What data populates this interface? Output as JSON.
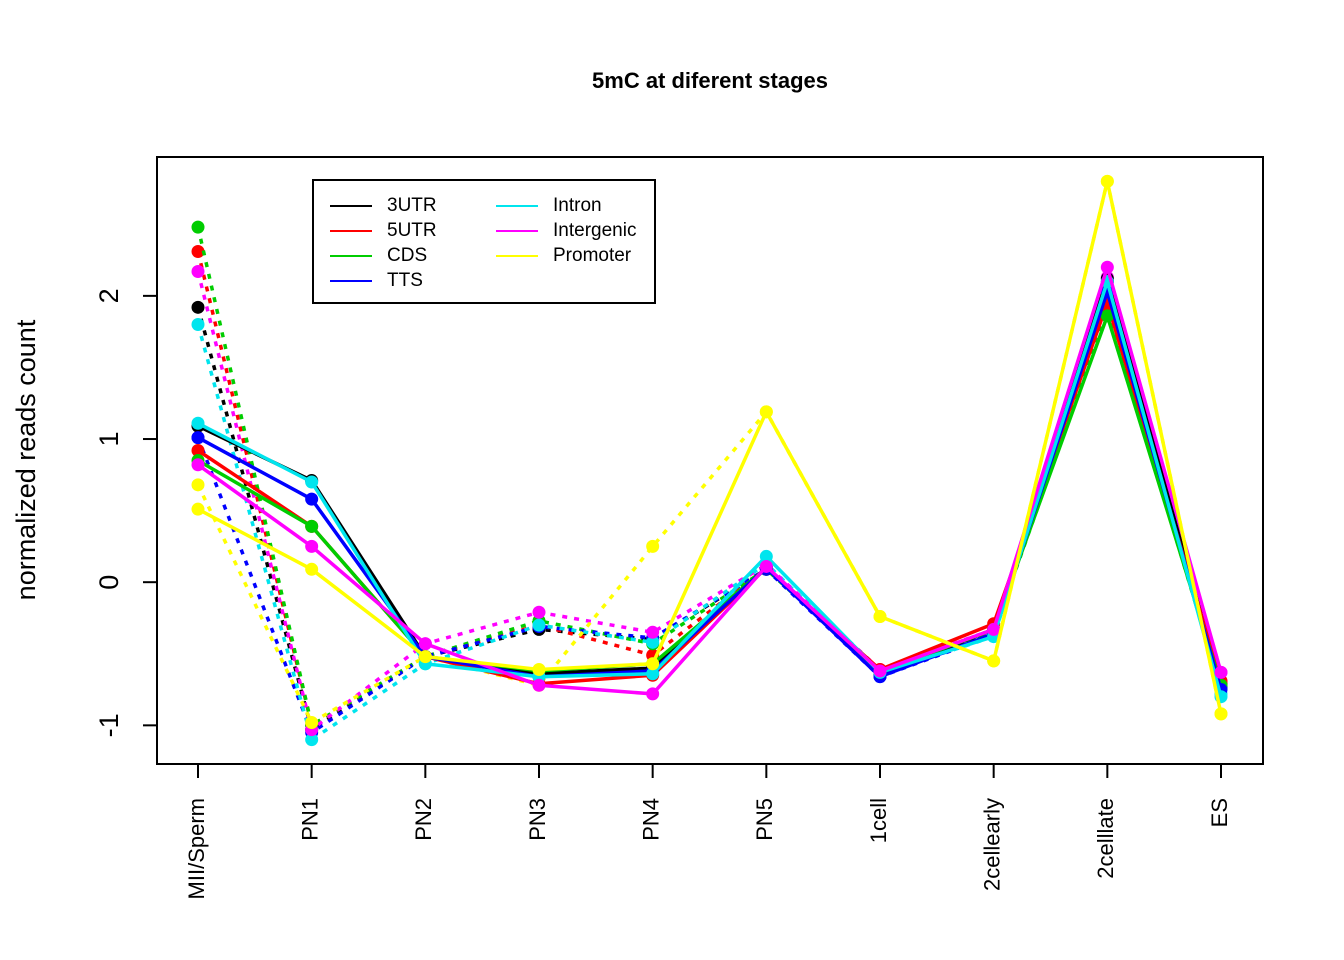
{
  "chart_data": {
    "type": "line",
    "title": "5mC at diferent stages",
    "xlabel": "",
    "ylabel": "normalized reads count",
    "categories": [
      "MII/Sperm",
      "PN1",
      "PN2",
      "PN3",
      "PN4",
      "PN5",
      "1cell",
      "2cellearly",
      "2celllate",
      "ES"
    ],
    "y_ticks": [
      "-1",
      "0",
      "1",
      "2"
    ],
    "ylim": [
      -1.27,
      2.97
    ],
    "legend_placement": "top-left",
    "series": [
      {
        "name": "3UTR",
        "color": "#000000",
        "style": "solid",
        "values": [
          1.09,
          0.71,
          -0.52,
          -0.64,
          -0.6,
          0.1,
          -0.64,
          -0.33,
          2.12,
          -0.72
        ]
      },
      {
        "name": "5UTR",
        "color": "#ff0000",
        "style": "solid",
        "values": [
          0.92,
          0.39,
          -0.52,
          -0.71,
          -0.65,
          0.1,
          -0.61,
          -0.29,
          1.95,
          -0.69
        ]
      },
      {
        "name": "CDS",
        "color": "#00cd00",
        "style": "solid",
        "values": [
          0.85,
          0.39,
          -0.52,
          -0.62,
          -0.57,
          0.1,
          -0.63,
          -0.33,
          1.86,
          -0.72
        ]
      },
      {
        "name": "TTS",
        "color": "#0000ff",
        "style": "solid",
        "values": [
          1.01,
          0.58,
          -0.52,
          -0.66,
          -0.62,
          0.1,
          -0.66,
          -0.36,
          2.03,
          -0.75
        ]
      },
      {
        "name": "Intron",
        "color": "#00e5ee",
        "style": "solid",
        "values": [
          1.11,
          0.7,
          -0.57,
          -0.66,
          -0.64,
          0.18,
          -0.63,
          -0.38,
          2.1,
          -0.8
        ]
      },
      {
        "name": "Intergenic",
        "color": "#ff00ff",
        "style": "solid",
        "values": [
          0.82,
          0.25,
          -0.43,
          -0.72,
          -0.78,
          0.11,
          -0.62,
          -0.33,
          2.2,
          -0.63
        ]
      },
      {
        "name": "Promoter",
        "color": "#ffff00",
        "style": "solid",
        "values": [
          0.51,
          0.09,
          -0.52,
          -0.61,
          -0.57,
          1.19,
          -0.24,
          -0.55,
          2.8,
          -0.92
        ]
      },
      {
        "name": "",
        "color": "#000000",
        "style": "dashed",
        "values": [
          1.92,
          -1.03,
          -0.52,
          -0.33,
          -0.4,
          0.09,
          -0.64,
          -0.36,
          2.1,
          -0.71
        ]
      },
      {
        "name": "",
        "color": "#ff0000",
        "style": "dashed",
        "values": [
          2.31,
          -1.0,
          -0.52,
          -0.3,
          -0.51,
          0.1,
          -0.62,
          -0.33,
          1.98,
          -0.7
        ]
      },
      {
        "name": "",
        "color": "#00cd00",
        "style": "dashed",
        "values": [
          2.48,
          -1.0,
          -0.52,
          -0.27,
          -0.43,
          0.09,
          -0.63,
          -0.35,
          1.9,
          -0.74
        ]
      },
      {
        "name": "",
        "color": "#0000ff",
        "style": "dashed",
        "values": [
          1.01,
          -1.05,
          -0.52,
          -0.31,
          -0.39,
          0.09,
          -0.66,
          -0.37,
          2.02,
          -0.74
        ]
      },
      {
        "name": "",
        "color": "#00e5ee",
        "style": "dashed",
        "values": [
          1.8,
          -1.1,
          -0.57,
          -0.3,
          -0.42,
          0.13,
          -0.64,
          -0.38,
          2.04,
          -0.78
        ]
      },
      {
        "name": "",
        "color": "#ff00ff",
        "style": "dashed",
        "values": [
          2.17,
          -1.03,
          -0.43,
          -0.21,
          -0.35,
          0.12,
          -0.61,
          -0.33,
          2.13,
          -0.63
        ]
      },
      {
        "name": "",
        "color": "#ffff00",
        "style": "dashed",
        "values": [
          0.68,
          -0.98,
          -0.52,
          -0.72,
          0.25,
          1.19,
          -0.24,
          -0.55,
          2.8,
          -0.92
        ]
      }
    ]
  }
}
